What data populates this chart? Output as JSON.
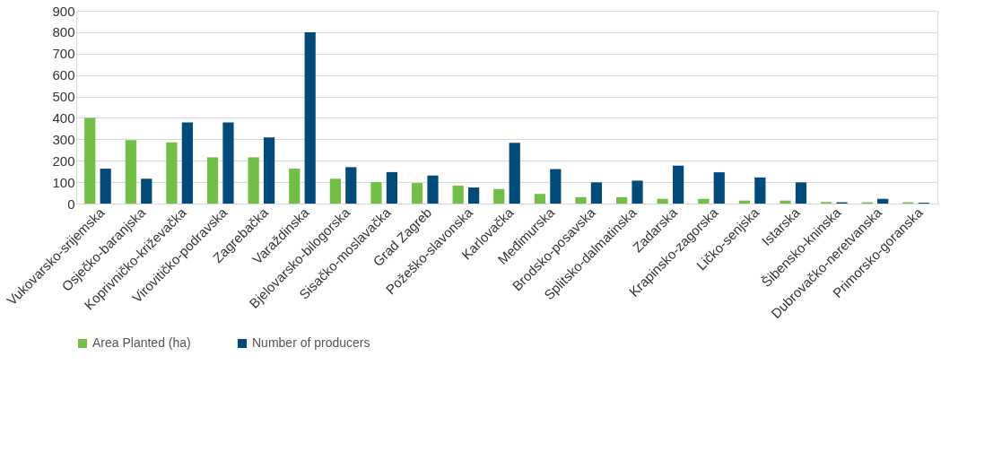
{
  "chart_data": {
    "type": "bar",
    "categories": [
      "Vukovarsko-srijemska",
      "Osječko-baranjska",
      "Koprivničko-križevačka",
      "Virovitičko-podravska",
      "Zagrebačka",
      "Varaždinska",
      "Bjelovarsko-bilogorska",
      "Sisačko-moslavačka",
      "Grad Zagreb",
      "Požeško-slavonska",
      "Karlovačka",
      "Međimurska",
      "Brodsko-posavska",
      "Splitsko-dalmatinska",
      "Zadarska",
      "Krapinsko-zagorska",
      "Ličko-senjska",
      "Istarska",
      "Šibensko-kninska",
      "Dubrovačko-neretvanska",
      "Primorsko-goranska"
    ],
    "series": [
      {
        "name": "Area Planted (ha)",
        "color": "#71bf44",
        "values": [
          400,
          296,
          286,
          216,
          216,
          163,
          116,
          100,
          96,
          84,
          68,
          45,
          30,
          30,
          22,
          22,
          14,
          14,
          7,
          6,
          6
        ]
      },
      {
        "name": "Number of producers",
        "color": "#004a7c",
        "values": [
          163,
          116,
          379,
          379,
          309,
          800,
          170,
          147,
          131,
          75,
          284,
          161,
          99,
          107,
          177,
          146,
          122,
          99,
          6,
          22,
          4
        ]
      }
    ],
    "ylim": [
      0,
      900
    ],
    "yticks": [
      0,
      100,
      200,
      300,
      400,
      500,
      600,
      700,
      800,
      900
    ],
    "grid": "y",
    "legend": "bottom"
  }
}
